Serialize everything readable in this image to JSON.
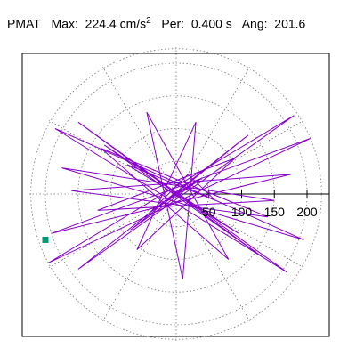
{
  "header": {
    "station": "PMAT",
    "max_label": "Max:",
    "max_value": "224.4",
    "max_unit": "cm/s",
    "max_unit_exp": "2",
    "per_label": "Per:",
    "per_value": "0.400 s",
    "ang_label": "Ang:",
    "ang_value": "201.6"
  },
  "chart_data": {
    "type": "line",
    "kind": "polar acceleration orbit (hodogram)",
    "title": "PMAT Max: 224.4 cm/s2 Per: 0.400 s Ang: 201.6",
    "radial_ticks": [
      50,
      100,
      150,
      200
    ],
    "radial_tick_labels": [
      "50",
      "100",
      "150",
      "200"
    ],
    "rmax": 224.4,
    "grid": "dotted concentric circles and diagonal spokes",
    "series": [
      {
        "color": "#8800cc",
        "x": [
          0,
          12,
          -20,
          35,
          -40,
          18,
          60,
          -75,
          95,
          -110,
          130,
          -150,
          170,
          -185,
          195,
          -175,
          150,
          -120,
          90,
          -60,
          30,
          10,
          -45,
          80,
          -115,
          140,
          -160,
          175,
          -190,
          205,
          -195,
          180,
          -150,
          110,
          -70,
          40,
          -15,
          5
        ],
        "y": [
          0,
          8,
          -15,
          22,
          -28,
          30,
          -10,
          45,
          -60,
          75,
          -95,
          110,
          -120,
          100,
          -70,
          40,
          -10,
          -25,
          55,
          -85,
          110,
          -130,
          125,
          -100,
          70,
          -35,
          5,
          30,
          -60,
          85,
          -105,
          120,
          -115,
          90,
          -55,
          25,
          -8,
          2
        ]
      }
    ],
    "end_marker": {
      "x": -200,
      "y": -70,
      "color": "#009977",
      "shape": "square"
    }
  }
}
